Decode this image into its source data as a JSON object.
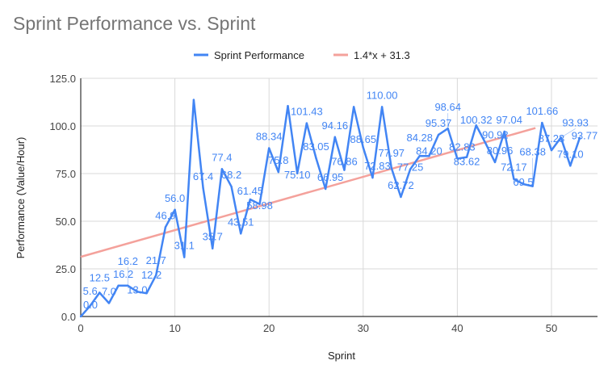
{
  "chart_data": {
    "type": "line",
    "title": "Sprint Performance vs. Sprint",
    "xlabel": "Sprint",
    "ylabel": "Performance (Value/Hour)",
    "xlim": [
      0,
      55
    ],
    "ylim": [
      0,
      125
    ],
    "xticks": [
      0,
      10,
      20,
      30,
      40,
      50
    ],
    "yticks": [
      "0.0",
      "25.0",
      "50.0",
      "75.0",
      "100.0",
      "125.0"
    ],
    "grid": true,
    "legend_position": "top",
    "series": [
      {
        "name": "Sprint Performance",
        "color": "#4285f4",
        "x": [
          0,
          1,
          2,
          3,
          4,
          5,
          6,
          7,
          8,
          9,
          10,
          11,
          12,
          13,
          14,
          15,
          16,
          17,
          18,
          19,
          20,
          21,
          22,
          23,
          24,
          25,
          26,
          27,
          28,
          29,
          30,
          31,
          32,
          33,
          34,
          35,
          36,
          37,
          38,
          39,
          40,
          41,
          42,
          43,
          44,
          45,
          46,
          47,
          48,
          49,
          50,
          51,
          52,
          53
        ],
        "values": [
          0.0,
          5.6,
          12.5,
          7.0,
          16.2,
          16.2,
          13.0,
          12.2,
          21.7,
          46.9,
          56.0,
          31.1,
          113.7,
          67.4,
          35.7,
          77.4,
          68.2,
          43.51,
          61.45,
          58.98,
          88.34,
          75.8,
          110.5,
          75.1,
          101.43,
          83.05,
          66.95,
          94.16,
          76.86,
          110.0,
          88.65,
          72.83,
          110.0,
          77.97,
          62.72,
          77.25,
          84.28,
          84.2,
          95.37,
          98.64,
          82.83,
          83.62,
          100.32,
          90.92,
          80.96,
          97.04,
          72.17,
          69.5,
          68.38,
          101.66,
          87.23,
          93.93,
          79.1,
          93.77
        ],
        "labels": [
          "0.0",
          "5.6",
          "12.5",
          "7.0",
          "16.2",
          "16.2",
          "13.0",
          "12.2",
          "21.7",
          "46.9",
          "56.0",
          "31.1",
          "",
          "67.4",
          "35.7",
          "77.4",
          "68.2",
          "43.51",
          "61.45",
          "58.98",
          "88.34",
          "75.8",
          "",
          "75.10",
          "101.43",
          "83.05",
          "66.95",
          "94.16",
          "76.86",
          "",
          "88.65",
          "72.83",
          "110.00",
          "77.97",
          "62.72",
          "77.25",
          "84.28",
          "84.20",
          "95.37",
          "98.64",
          "82.83",
          "83.62",
          "100.32",
          "90.92",
          "80.96",
          "97.04",
          "72.17",
          "69.5",
          "68.38",
          "101.66",
          "87.23",
          "93.93",
          "79.10",
          "93.77"
        ]
      },
      {
        "name": "1.4*x + 31.3",
        "color": "#f4a19b",
        "type": "trendline",
        "slope": 1.4,
        "intercept": 31.3,
        "x_range": [
          0,
          48.3
        ]
      }
    ]
  }
}
